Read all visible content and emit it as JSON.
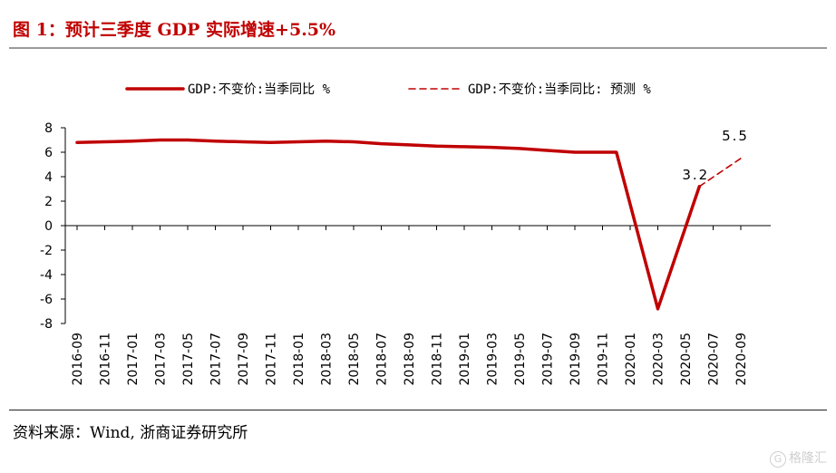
{
  "header": {
    "title": "图 1：预计三季度 GDP 实际增速+5.5%"
  },
  "footer": {
    "source": "资料来源：Wind, 浙商证券研究所"
  },
  "watermark": {
    "text": "格隆汇",
    "mark": "G"
  },
  "colors": {
    "series": "#c00000",
    "axis": "#000000"
  },
  "chart_data": {
    "type": "line",
    "title": "",
    "xlabel": "",
    "ylabel": "",
    "ylim": [
      -8,
      8
    ],
    "yticks": [
      -8,
      -6,
      -4,
      -2,
      0,
      2,
      4,
      6,
      8
    ],
    "grid": false,
    "legend_position": "top",
    "x": [
      "2016-09",
      "2016-11",
      "2017-01",
      "2017-03",
      "2017-05",
      "2017-07",
      "2017-09",
      "2017-11",
      "2018-01",
      "2018-03",
      "2018-05",
      "2018-07",
      "2018-09",
      "2018-11",
      "2019-01",
      "2019-03",
      "2019-05",
      "2019-07",
      "2019-09",
      "2019-11",
      "2020-01",
      "2020-03",
      "2020-05",
      "2020-07",
      "2020-09"
    ],
    "series": [
      {
        "name": "GDP:不变价:当季同比 %",
        "style": "solid",
        "points": [
          [
            "2016-09",
            6.8
          ],
          [
            "2016-11",
            6.85
          ],
          [
            "2017-01",
            6.9
          ],
          [
            "2017-03",
            7.0
          ],
          [
            "2017-05",
            7.0
          ],
          [
            "2017-07",
            6.9
          ],
          [
            "2017-09",
            6.85
          ],
          [
            "2017-11",
            6.8
          ],
          [
            "2018-01",
            6.85
          ],
          [
            "2018-03",
            6.9
          ],
          [
            "2018-05",
            6.85
          ],
          [
            "2018-07",
            6.7
          ],
          [
            "2018-09",
            6.6
          ],
          [
            "2018-11",
            6.5
          ],
          [
            "2019-01",
            6.45
          ],
          [
            "2019-03",
            6.4
          ],
          [
            "2019-05",
            6.3
          ],
          [
            "2019-07",
            6.15
          ],
          [
            "2019-09",
            6.0
          ],
          [
            "2019-11",
            6.0
          ],
          [
            "2019-12",
            6.0
          ],
          [
            "2020-03",
            -6.8
          ],
          [
            "2020-06",
            3.2
          ]
        ]
      },
      {
        "name": "GDP:不变价:当季同比: 预测 %",
        "style": "dashed",
        "points": [
          [
            "2020-06",
            3.2
          ],
          [
            "2020-09",
            5.5
          ]
        ]
      }
    ],
    "annotations": [
      {
        "text": "3.2",
        "x": "2020-06",
        "y": 3.2
      },
      {
        "text": "5.5",
        "x": "2020-09",
        "y": 5.5
      }
    ]
  }
}
